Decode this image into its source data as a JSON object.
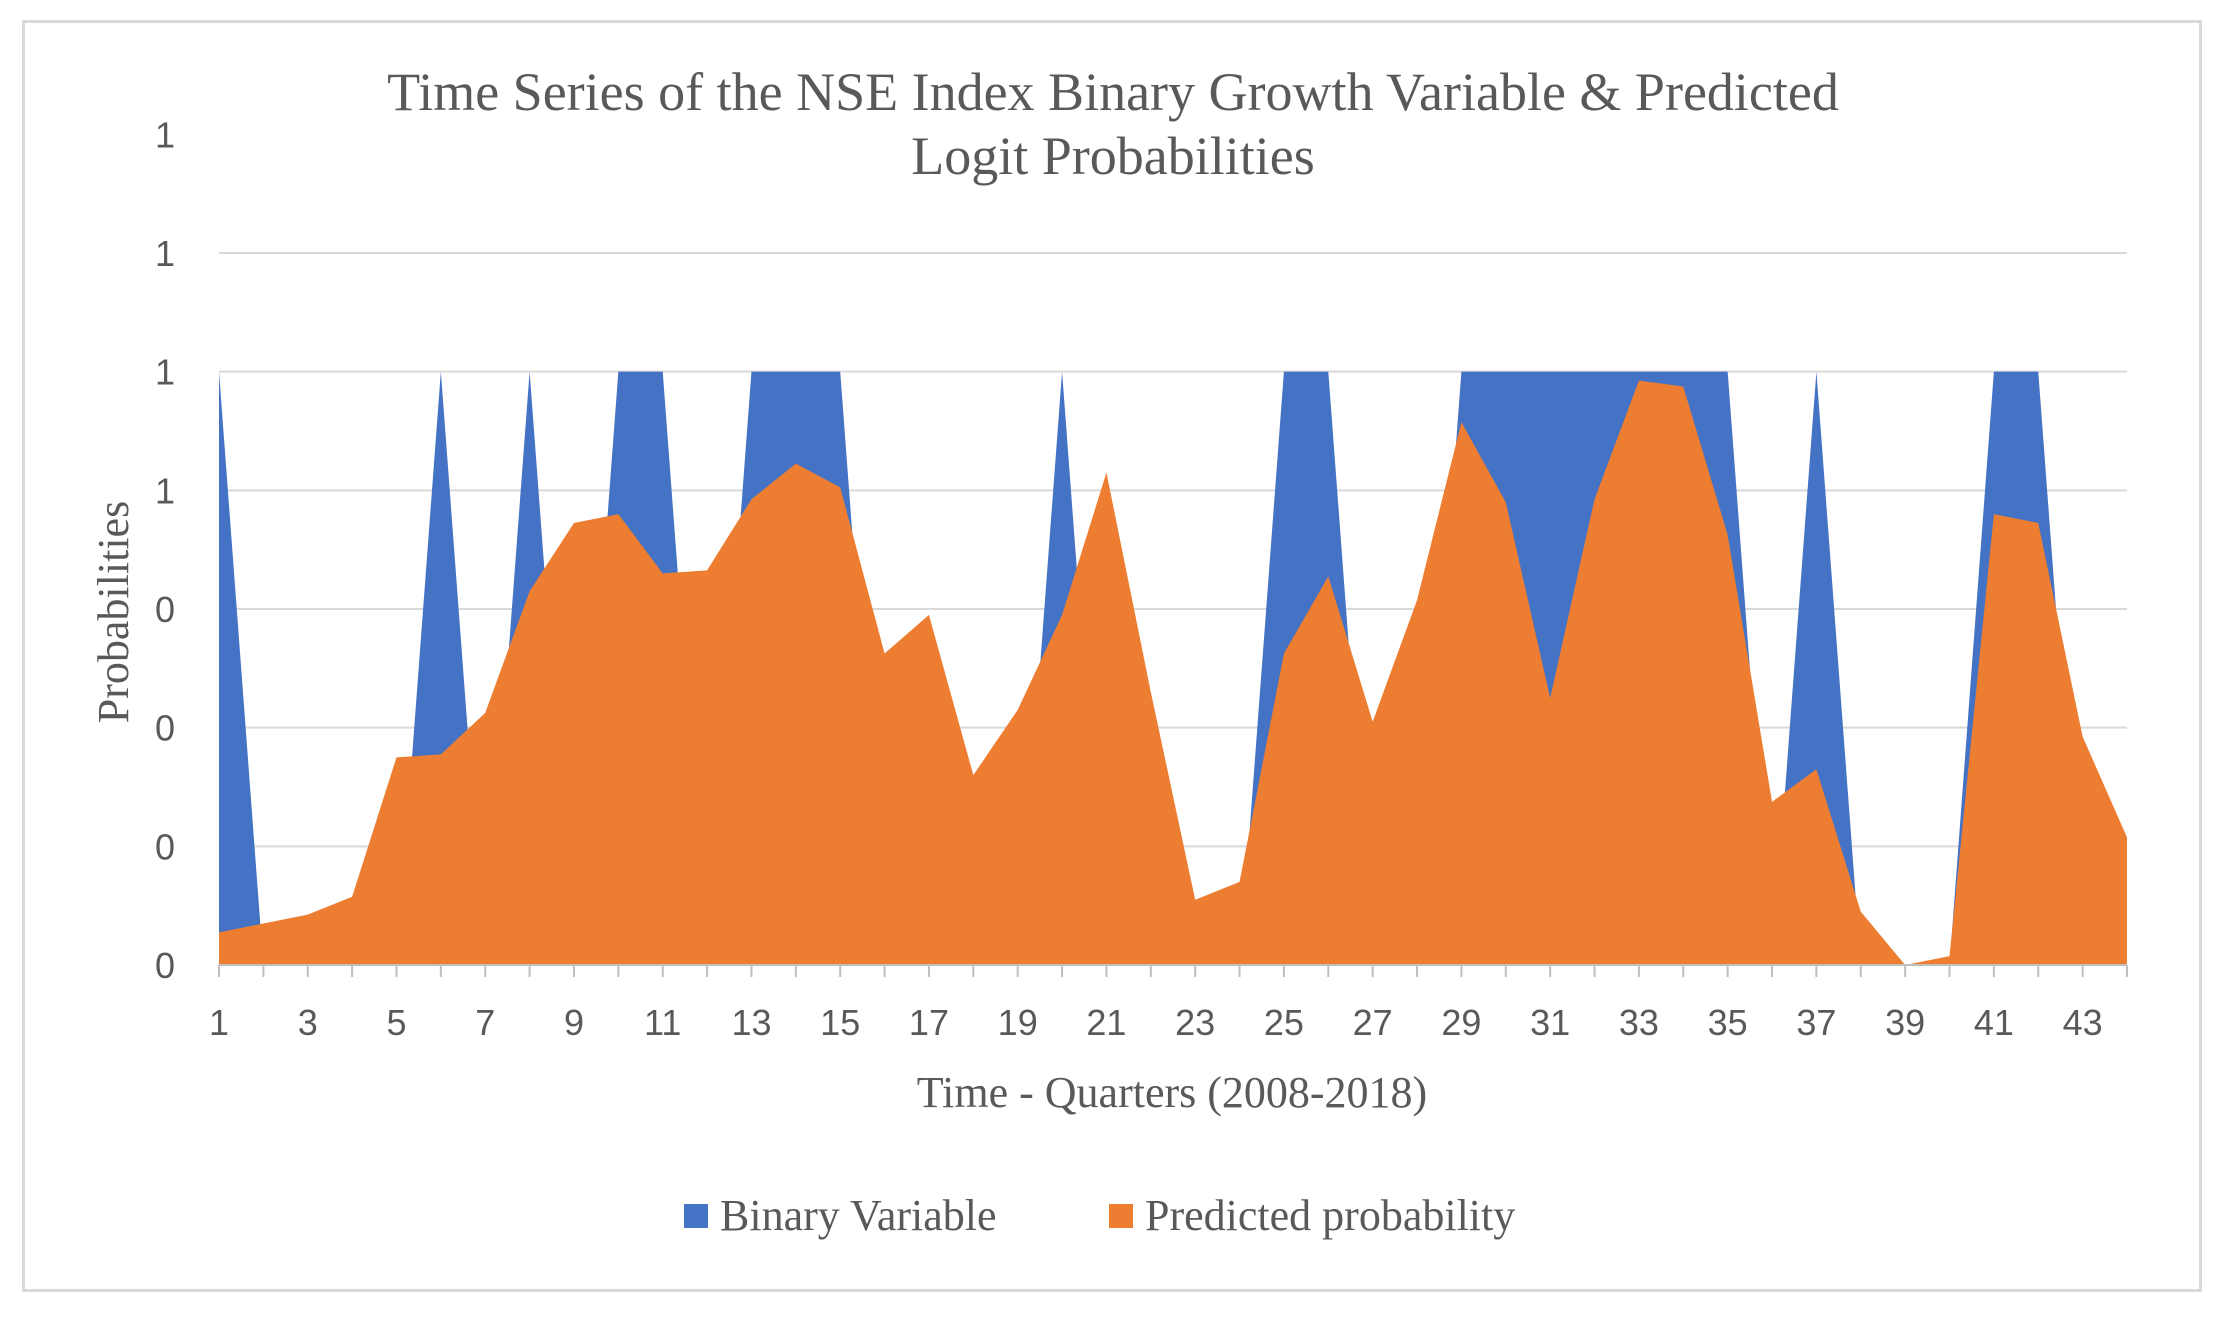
{
  "chart_data": {
    "type": "area",
    "title": "Time Series of the NSE Index Binary Growth Variable & Predicted Logit Probabilities",
    "title_lines": [
      "Time Series of the NSE Index Binary Growth Variable & Predicted",
      "Logit Probabilities"
    ],
    "xlabel": "Time - Quarters (2008-2018)",
    "ylabel": "Probabilities",
    "x": [
      1,
      2,
      3,
      4,
      5,
      6,
      7,
      8,
      9,
      10,
      11,
      12,
      13,
      14,
      15,
      16,
      17,
      18,
      19,
      20,
      21,
      22,
      23,
      24,
      25,
      26,
      27,
      28,
      29,
      30,
      31,
      32,
      33,
      34,
      35,
      36,
      37,
      38,
      39,
      40,
      41,
      42,
      43,
      44
    ],
    "x_tick_labels": [
      "1",
      "3",
      "5",
      "7",
      "9",
      "11",
      "13",
      "15",
      "17",
      "19",
      "21",
      "23",
      "25",
      "27",
      "29",
      "31",
      "33",
      "35",
      "37",
      "39",
      "41",
      "43"
    ],
    "y_tick_labels": [
      "0",
      "0",
      "0",
      "0",
      "1",
      "1",
      "1",
      "1"
    ],
    "ylim": [
      0,
      1.2
    ],
    "y_tick_step": 0.2,
    "grid": "horizontal",
    "legend_position": "bottom",
    "series": [
      {
        "name": "Binary Variable",
        "color": "#4472c4",
        "values": [
          1,
          0,
          0,
          0,
          0,
          1,
          0,
          1,
          0,
          1,
          1,
          0,
          1,
          1,
          1,
          0,
          0,
          0,
          0,
          1,
          0,
          0,
          0,
          0,
          1,
          1,
          0,
          0,
          1,
          1,
          1,
          1,
          1,
          1,
          1,
          0,
          1,
          0,
          0,
          0,
          1,
          1,
          0,
          0
        ]
      },
      {
        "name": "Predicted probability",
        "color": "#ed7d31",
        "values": [
          0.055,
          0.07,
          0.085,
          0.115,
          0.35,
          0.355,
          0.425,
          0.63,
          0.745,
          0.76,
          0.66,
          0.665,
          0.785,
          0.845,
          0.805,
          0.525,
          0.59,
          0.32,
          0.43,
          0.59,
          0.83,
          0.46,
          0.11,
          0.14,
          0.525,
          0.655,
          0.41,
          0.615,
          0.915,
          0.78,
          0.45,
          0.785,
          0.985,
          0.975,
          0.725,
          0.275,
          0.33,
          0.09,
          0.0,
          0.015,
          0.76,
          0.745,
          0.385,
          0.215
        ]
      }
    ]
  }
}
